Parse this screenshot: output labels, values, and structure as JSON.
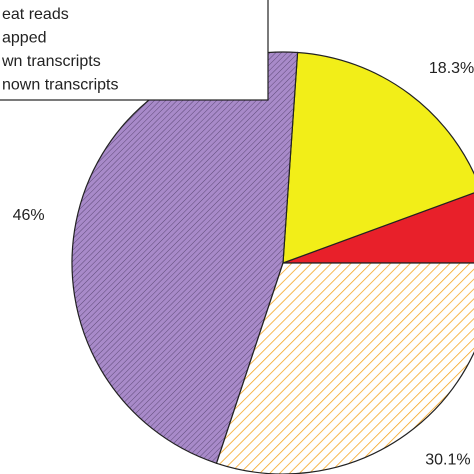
{
  "chart_data": {
    "type": "pie",
    "categories": [
      "eat reads",
      "apped",
      "wn transcripts",
      "nown transcripts"
    ],
    "values": [
      5.6,
      18.3,
      46,
      30.1
    ],
    "value_labels": [
      null,
      "18.3%",
      "46%",
      "30.1%"
    ],
    "colors": [
      "#e8202a",
      "#f2ee18",
      "#a88ac9",
      "#f5a623"
    ],
    "hatch": [
      false,
      false,
      true,
      true
    ],
    "legend": "top-left"
  }
}
